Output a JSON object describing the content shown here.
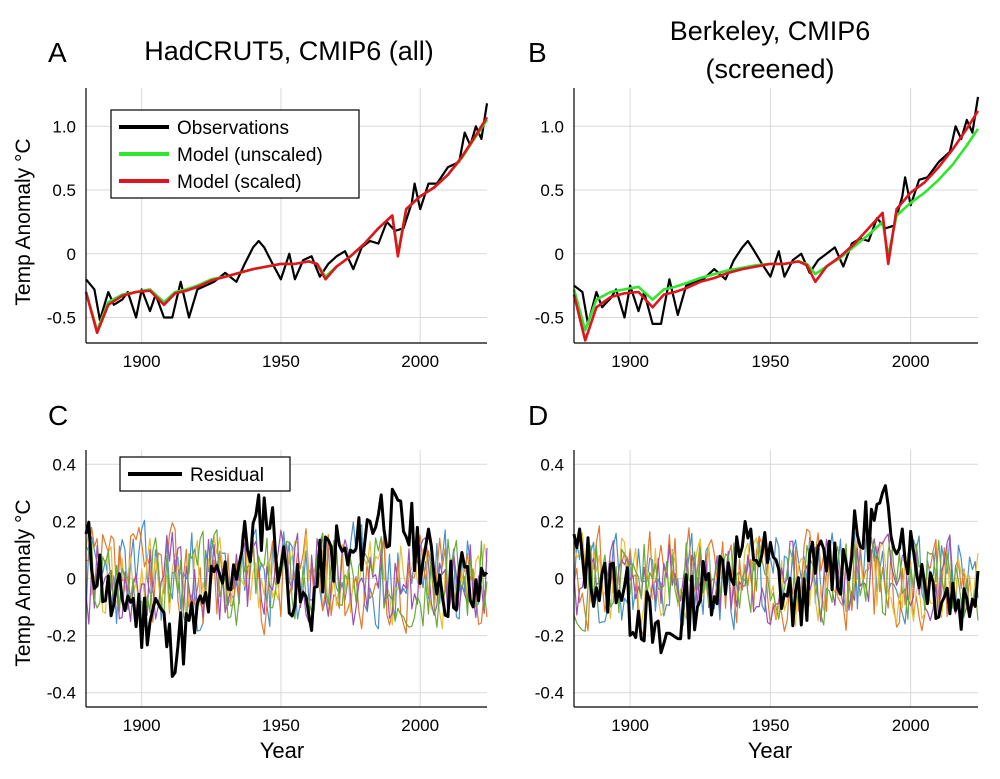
{
  "panels": [
    {
      "letter": "A",
      "title_lines": [
        "HadCRUT5, CMIP6 (all)"
      ]
    },
    {
      "letter": "B",
      "title_lines": [
        "Berkeley, CMIP6",
        "(screened)"
      ]
    },
    {
      "letter": "C",
      "title_lines": []
    },
    {
      "letter": "D",
      "title_lines": []
    }
  ],
  "axis_labels": {
    "y": "Temp Anomaly °C",
    "x": "Year"
  },
  "chart_data": [
    {
      "panel": "A",
      "type": "line",
      "title": "HadCRUT5, CMIP6 (all)",
      "ylabel": "Temp Anomaly °C",
      "xlabel": "",
      "xlim": [
        1880,
        2024
      ],
      "ylim": [
        -0.7,
        1.3
      ],
      "xticks": [
        1900,
        1950,
        2000
      ],
      "yticks": [
        -0.5,
        0,
        0.5,
        1.0
      ],
      "ytick_labels": [
        "-0.5",
        "0",
        "0.5",
        "1.0"
      ],
      "grid": true,
      "legend_position": "top-left",
      "series": [
        {
          "name": "Observations",
          "color": "#000000",
          "x": [
            1880,
            1883,
            1885,
            1888,
            1890,
            1893,
            1895,
            1898,
            1900,
            1903,
            1905,
            1908,
            1911,
            1914,
            1917,
            1920,
            1923,
            1926,
            1930,
            1934,
            1937,
            1940,
            1942,
            1944,
            1947,
            1950,
            1953,
            1955,
            1958,
            1961,
            1964,
            1967,
            1970,
            1973,
            1976,
            1979,
            1982,
            1985,
            1988,
            1991,
            1994,
            1997,
            1998,
            2000,
            2003,
            2006,
            2010,
            2014,
            2016,
            2018,
            2020,
            2022,
            2024
          ],
          "y": [
            -0.2,
            -0.28,
            -0.52,
            -0.3,
            -0.4,
            -0.36,
            -0.3,
            -0.5,
            -0.28,
            -0.45,
            -0.32,
            -0.5,
            -0.5,
            -0.22,
            -0.5,
            -0.28,
            -0.25,
            -0.22,
            -0.15,
            -0.22,
            -0.08,
            0.05,
            0.1,
            0.05,
            -0.08,
            -0.2,
            0.0,
            -0.2,
            -0.05,
            -0.02,
            -0.18,
            -0.08,
            -0.02,
            0.02,
            -0.12,
            0.05,
            0.1,
            0.08,
            0.25,
            0.18,
            0.2,
            0.4,
            0.55,
            0.35,
            0.55,
            0.55,
            0.68,
            0.72,
            0.95,
            0.85,
            1.0,
            0.9,
            1.18
          ]
        },
        {
          "name": "Model (unscaled)",
          "color": "#2ee62e",
          "x": [
            1880,
            1884,
            1888,
            1893,
            1898,
            1903,
            1908,
            1912,
            1916,
            1920,
            1925,
            1930,
            1935,
            1940,
            1945,
            1950,
            1955,
            1960,
            1963,
            1966,
            1970,
            1975,
            1980,
            1985,
            1990,
            1992,
            1995,
            2000,
            2005,
            2010,
            2015,
            2020,
            2024
          ],
          "y": [
            -0.3,
            -0.6,
            -0.38,
            -0.32,
            -0.3,
            -0.28,
            -0.38,
            -0.3,
            -0.28,
            -0.25,
            -0.2,
            -0.18,
            -0.15,
            -0.12,
            -0.1,
            -0.08,
            -0.08,
            -0.06,
            -0.08,
            -0.18,
            -0.1,
            -0.02,
            0.08,
            0.2,
            0.3,
            0.0,
            0.35,
            0.45,
            0.52,
            0.62,
            0.75,
            0.92,
            1.05
          ]
        },
        {
          "name": "Model (scaled)",
          "color": "#e0141e",
          "x": [
            1880,
            1884,
            1888,
            1893,
            1898,
            1903,
            1908,
            1912,
            1916,
            1920,
            1925,
            1930,
            1935,
            1940,
            1945,
            1950,
            1955,
            1960,
            1963,
            1966,
            1970,
            1975,
            1980,
            1985,
            1990,
            1992,
            1995,
            2000,
            2005,
            2010,
            2015,
            2020,
            2024
          ],
          "y": [
            -0.3,
            -0.62,
            -0.4,
            -0.33,
            -0.3,
            -0.29,
            -0.4,
            -0.31,
            -0.29,
            -0.26,
            -0.21,
            -0.18,
            -0.15,
            -0.12,
            -0.1,
            -0.08,
            -0.08,
            -0.06,
            -0.08,
            -0.2,
            -0.1,
            -0.02,
            0.08,
            0.2,
            0.3,
            -0.02,
            0.35,
            0.45,
            0.52,
            0.62,
            0.76,
            0.93,
            1.07
          ]
        }
      ]
    },
    {
      "panel": "B",
      "type": "line",
      "title": "Berkeley, CMIP6 (screened)",
      "ylabel": "",
      "xlabel": "",
      "xlim": [
        1880,
        2024
      ],
      "ylim": [
        -0.7,
        1.3
      ],
      "xticks": [
        1900,
        1950,
        2000
      ],
      "yticks": [
        -0.5,
        0,
        0.5,
        1.0
      ],
      "ytick_labels": [
        "-0.5",
        "0",
        "0.5",
        "1.0"
      ],
      "grid": true,
      "series": [
        {
          "name": "Observations",
          "color": "#000000",
          "x": [
            1880,
            1883,
            1885,
            1888,
            1890,
            1893,
            1895,
            1898,
            1900,
            1903,
            1905,
            1908,
            1911,
            1914,
            1917,
            1920,
            1923,
            1926,
            1930,
            1934,
            1937,
            1940,
            1942,
            1944,
            1947,
            1950,
            1953,
            1955,
            1958,
            1961,
            1964,
            1967,
            1970,
            1973,
            1976,
            1979,
            1982,
            1985,
            1988,
            1991,
            1994,
            1997,
            1998,
            2000,
            2003,
            2006,
            2010,
            2014,
            2016,
            2018,
            2020,
            2022,
            2024
          ],
          "y": [
            -0.25,
            -0.3,
            -0.55,
            -0.3,
            -0.42,
            -0.35,
            -0.28,
            -0.5,
            -0.25,
            -0.45,
            -0.3,
            -0.55,
            -0.55,
            -0.2,
            -0.48,
            -0.25,
            -0.22,
            -0.2,
            -0.12,
            -0.2,
            -0.05,
            0.05,
            0.1,
            0.03,
            -0.08,
            -0.18,
            0.02,
            -0.18,
            -0.05,
            0.0,
            -0.15,
            -0.05,
            0.0,
            0.05,
            -0.1,
            0.08,
            0.12,
            0.1,
            0.28,
            0.2,
            0.22,
            0.45,
            0.6,
            0.38,
            0.58,
            0.6,
            0.72,
            0.8,
            1.0,
            0.9,
            1.05,
            0.95,
            1.23
          ]
        },
        {
          "name": "Model (unscaled)",
          "color": "#2ee62e",
          "x": [
            1880,
            1884,
            1888,
            1893,
            1898,
            1903,
            1908,
            1912,
            1916,
            1920,
            1925,
            1930,
            1935,
            1940,
            1945,
            1950,
            1955,
            1960,
            1963,
            1966,
            1970,
            1975,
            1980,
            1985,
            1990,
            1992,
            1995,
            2000,
            2005,
            2010,
            2015,
            2020,
            2024
          ],
          "y": [
            -0.28,
            -0.6,
            -0.36,
            -0.3,
            -0.28,
            -0.26,
            -0.36,
            -0.28,
            -0.26,
            -0.23,
            -0.19,
            -0.16,
            -0.13,
            -0.11,
            -0.09,
            -0.08,
            -0.08,
            -0.06,
            -0.08,
            -0.16,
            -0.1,
            -0.03,
            0.06,
            0.15,
            0.25,
            -0.02,
            0.3,
            0.4,
            0.48,
            0.58,
            0.7,
            0.85,
            0.98
          ]
        },
        {
          "name": "Model (scaled)",
          "color": "#e0141e",
          "x": [
            1880,
            1884,
            1888,
            1893,
            1898,
            1903,
            1908,
            1912,
            1916,
            1920,
            1925,
            1930,
            1935,
            1940,
            1945,
            1950,
            1955,
            1960,
            1963,
            1966,
            1970,
            1975,
            1980,
            1985,
            1990,
            1992,
            1995,
            2000,
            2005,
            2010,
            2015,
            2020,
            2024
          ],
          "y": [
            -0.32,
            -0.68,
            -0.42,
            -0.34,
            -0.31,
            -0.3,
            -0.42,
            -0.32,
            -0.3,
            -0.27,
            -0.22,
            -0.19,
            -0.15,
            -0.12,
            -0.1,
            -0.08,
            -0.08,
            -0.06,
            -0.09,
            -0.22,
            -0.1,
            -0.02,
            0.08,
            0.2,
            0.32,
            -0.08,
            0.35,
            0.48,
            0.56,
            0.68,
            0.82,
            0.98,
            1.12
          ]
        }
      ]
    },
    {
      "panel": "C",
      "type": "line",
      "ylabel": "Temp Anomaly °C",
      "xlabel": "Year",
      "xlim": [
        1880,
        2024
      ],
      "ylim": [
        -0.45,
        0.45
      ],
      "xticks": [
        1900,
        1950,
        2000
      ],
      "yticks": [
        -0.4,
        -0.2,
        0,
        0.2,
        0.4
      ],
      "ytick_labels": [
        "-0.4",
        "-0.2",
        "0",
        "0.2",
        "0.4"
      ],
      "grid": true,
      "legend_position": "top-left",
      "series": [
        {
          "name": "Residual",
          "color": "#000000",
          "width": 3,
          "seed": 11,
          "amp": 0.12,
          "x": [
            1880,
            1885,
            1890,
            1895,
            1900,
            1905,
            1910,
            1915,
            1920,
            1925,
            1930,
            1935,
            1940,
            1945,
            1950,
            1955,
            1960,
            1965,
            1970,
            1975,
            1980,
            1985,
            1990,
            1995,
            2000,
            2005,
            2010,
            2015,
            2020,
            2024
          ],
          "y": [
            0.12,
            0.02,
            -0.12,
            -0.05,
            -0.15,
            -0.08,
            -0.24,
            -0.2,
            -0.15,
            -0.05,
            0.0,
            0.08,
            0.15,
            0.25,
            0.05,
            -0.05,
            -0.12,
            0.05,
            0.1,
            0.05,
            0.15,
            0.25,
            0.2,
            0.18,
            0.1,
            0.05,
            -0.05,
            0.02,
            -0.1,
            0.1
          ]
        },
        {
          "color": "#4a90c8",
          "width": 1.2,
          "seed": 23,
          "amp": 0.17
        },
        {
          "color": "#e07a2e",
          "width": 1.2,
          "seed": 37,
          "amp": 0.17
        },
        {
          "color": "#e6c03c",
          "width": 1.2,
          "seed": 41,
          "amp": 0.15
        },
        {
          "color": "#9b4fb0",
          "width": 1.2,
          "seed": 53,
          "amp": 0.15
        },
        {
          "color": "#6aaa3a",
          "width": 1.2,
          "seed": 67,
          "amp": 0.15
        }
      ]
    },
    {
      "panel": "D",
      "type": "line",
      "ylabel": "",
      "xlabel": "Year",
      "xlim": [
        1880,
        2024
      ],
      "ylim": [
        -0.45,
        0.45
      ],
      "xticks": [
        1900,
        1950,
        2000
      ],
      "yticks": [
        -0.4,
        -0.2,
        0,
        0.2,
        0.4
      ],
      "ytick_labels": [
        "-0.4",
        "-0.2",
        "0",
        "0.2",
        "0.4"
      ],
      "grid": true,
      "series": [
        {
          "color": "#000000",
          "width": 3,
          "seed": 13,
          "amp": 0.12,
          "x": [
            1880,
            1885,
            1890,
            1895,
            1900,
            1905,
            1910,
            1915,
            1920,
            1925,
            1930,
            1935,
            1940,
            1945,
            1950,
            1955,
            1960,
            1965,
            1970,
            1975,
            1980,
            1985,
            1990,
            1995,
            2000,
            2005,
            2010,
            2015,
            2020,
            2024
          ],
          "y": [
            0.1,
            0.05,
            -0.05,
            0.02,
            -0.1,
            -0.12,
            -0.25,
            -0.2,
            -0.1,
            -0.05,
            0.0,
            0.05,
            0.1,
            0.1,
            0.05,
            -0.05,
            -0.1,
            0.02,
            0.08,
            0.05,
            0.12,
            0.18,
            0.22,
            0.2,
            0.1,
            0.02,
            -0.05,
            -0.05,
            -0.1,
            0.05
          ]
        },
        {
          "color": "#4a90c8",
          "width": 1.2,
          "seed": 29,
          "amp": 0.15
        },
        {
          "color": "#e07a2e",
          "width": 1.2,
          "seed": 31,
          "amp": 0.16
        },
        {
          "color": "#e6c03c",
          "width": 1.2,
          "seed": 43,
          "amp": 0.14
        },
        {
          "color": "#9b4fb0",
          "width": 1.2,
          "seed": 59,
          "amp": 0.14
        },
        {
          "color": "#6aaa3a",
          "width": 1.2,
          "seed": 71,
          "amp": 0.14
        }
      ]
    }
  ]
}
